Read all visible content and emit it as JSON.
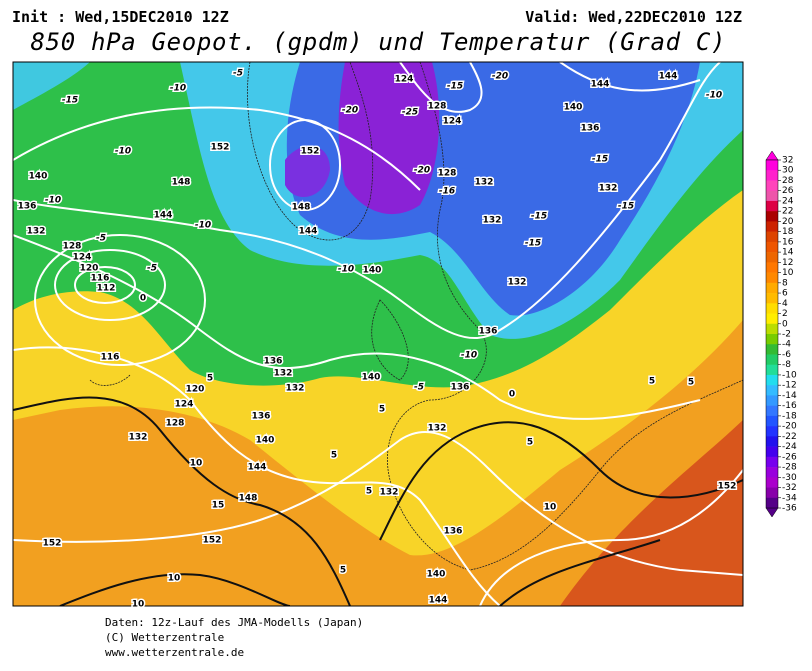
{
  "header": {
    "init": "Init : Wed,15DEC2010 12Z",
    "valid": "Valid: Wed,22DEC2010 12Z",
    "title": "850 hPa Geopot. (gpdm) und Temperatur (Grad C)"
  },
  "map": {
    "contour_labels": [
      "-15",
      "-10",
      "-5",
      "124",
      "-15",
      "-20",
      "144",
      "144",
      "-10",
      "-20",
      "-25",
      "128",
      "140",
      "124",
      "136",
      "-10",
      "152",
      "152",
      "-20",
      "128",
      "-15",
      "140",
      "148",
      "132",
      "132",
      "-16",
      "136",
      "-10",
      "148",
      "-15",
      "144",
      "-10",
      "144",
      "132",
      "-15",
      "132",
      "-5",
      "128",
      "-15",
      "124",
      "120",
      "-5",
      "-10",
      "140",
      "116",
      "112",
      "0",
      "132",
      "136",
      "116",
      "136",
      "132",
      "-10",
      "140",
      "-5",
      "136",
      "5",
      "5",
      "0",
      "5",
      "120",
      "132",
      "124",
      "5",
      "136",
      "128",
      "132",
      "140",
      "132",
      "5",
      "5",
      "10",
      "144",
      "5",
      "132",
      "152",
      "15",
      "148",
      "10",
      "136",
      "152",
      "152",
      "5",
      "140",
      "10",
      "144",
      "10"
    ]
  },
  "legend": {
    "ticks": [
      32,
      30,
      28,
      26,
      24,
      22,
      20,
      18,
      16,
      14,
      12,
      10,
      8,
      6,
      4,
      2,
      0,
      -2,
      -4,
      -6,
      -8,
      -10,
      -12,
      -14,
      -16,
      -18,
      -20,
      -22,
      -24,
      -26,
      -28,
      -30,
      -32,
      -34,
      -36
    ],
    "colors": [
      "#ff00dd",
      "#ff22cc",
      "#ff44bb",
      "#ee55aa",
      "#dd0044",
      "#aa0000",
      "#cc2200",
      "#dd4400",
      "#ee5500",
      "#ee6600",
      "#ff7700",
      "#ff8800",
      "#ffaa00",
      "#ffbb00",
      "#ffdd00",
      "#ffee00",
      "#bbdd00",
      "#77cc00",
      "#33bb33",
      "#22cc66",
      "#22dd99",
      "#22ddee",
      "#33bbff",
      "#3399ff",
      "#3377ff",
      "#2255ff",
      "#2233ff",
      "#2211ee",
      "#4400ee",
      "#7700ee",
      "#9900dd",
      "#aa00cc",
      "#8800aa",
      "#550088"
    ]
  },
  "footer": {
    "lines": [
      "Daten: 12z-Lauf des JMA-Modells (Japan)",
      "(C) Wetterzentrale",
      "www.wetterzentrale.de"
    ]
  }
}
